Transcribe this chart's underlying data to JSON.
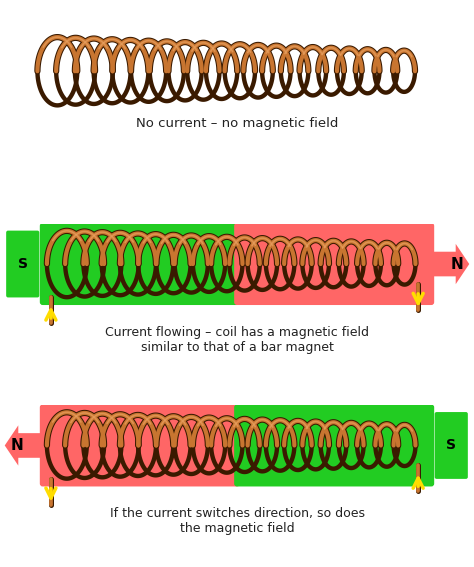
{
  "bg": "#ffffff",
  "coil_main": "#c87530",
  "coil_dark": "#3a1a00",
  "coil_mid": "#8b4010",
  "coil_light": "#e8a060",
  "green": "#22cc22",
  "red": "#ff6666",
  "yellow": "#ffdd00",
  "yellow_dark": "#cc9900",
  "text_color": "#222222",
  "label1": "No current – no magnetic field",
  "label2": "Current flowing – coil has a magnetic field\nsimilar to that of a bar magnet",
  "label3": "If the current switches direction, so does\nthe magnetic field",
  "n_turns": 20,
  "fig_w": 4.74,
  "fig_h": 5.67,
  "dpi": 100
}
